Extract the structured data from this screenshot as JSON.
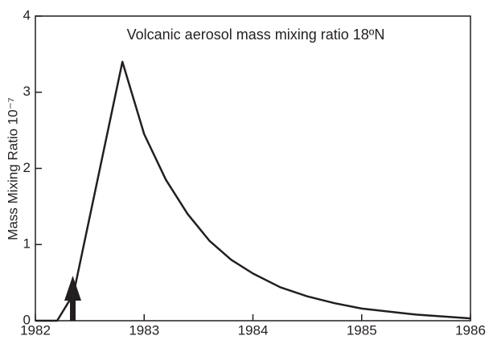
{
  "chart_data": {
    "type": "line",
    "title": "Volcanic aerosol mass mixing ratio 18ºN",
    "y_label": "Mass Mixing Ratio 10⁻⁷",
    "x": [
      1982,
      1982.2,
      1982.35,
      1982.8,
      1983,
      1983.2,
      1983.4,
      1983.6,
      1983.8,
      1984,
      1984.25,
      1984.5,
      1984.75,
      1985,
      1985.5,
      1986
    ],
    "values": [
      0,
      0,
      0.35,
      3.4,
      2.45,
      1.85,
      1.4,
      1.05,
      0.8,
      0.62,
      0.44,
      0.32,
      0.23,
      0.16,
      0.08,
      0.03
    ],
    "color": "#231f20",
    "xlim": [
      1982,
      1986
    ],
    "xticks": [
      1982,
      1983,
      1984,
      1985,
      1986
    ],
    "ylim": [
      0,
      4
    ],
    "yticks": [
      0,
      1,
      2,
      3,
      4
    ]
  }
}
